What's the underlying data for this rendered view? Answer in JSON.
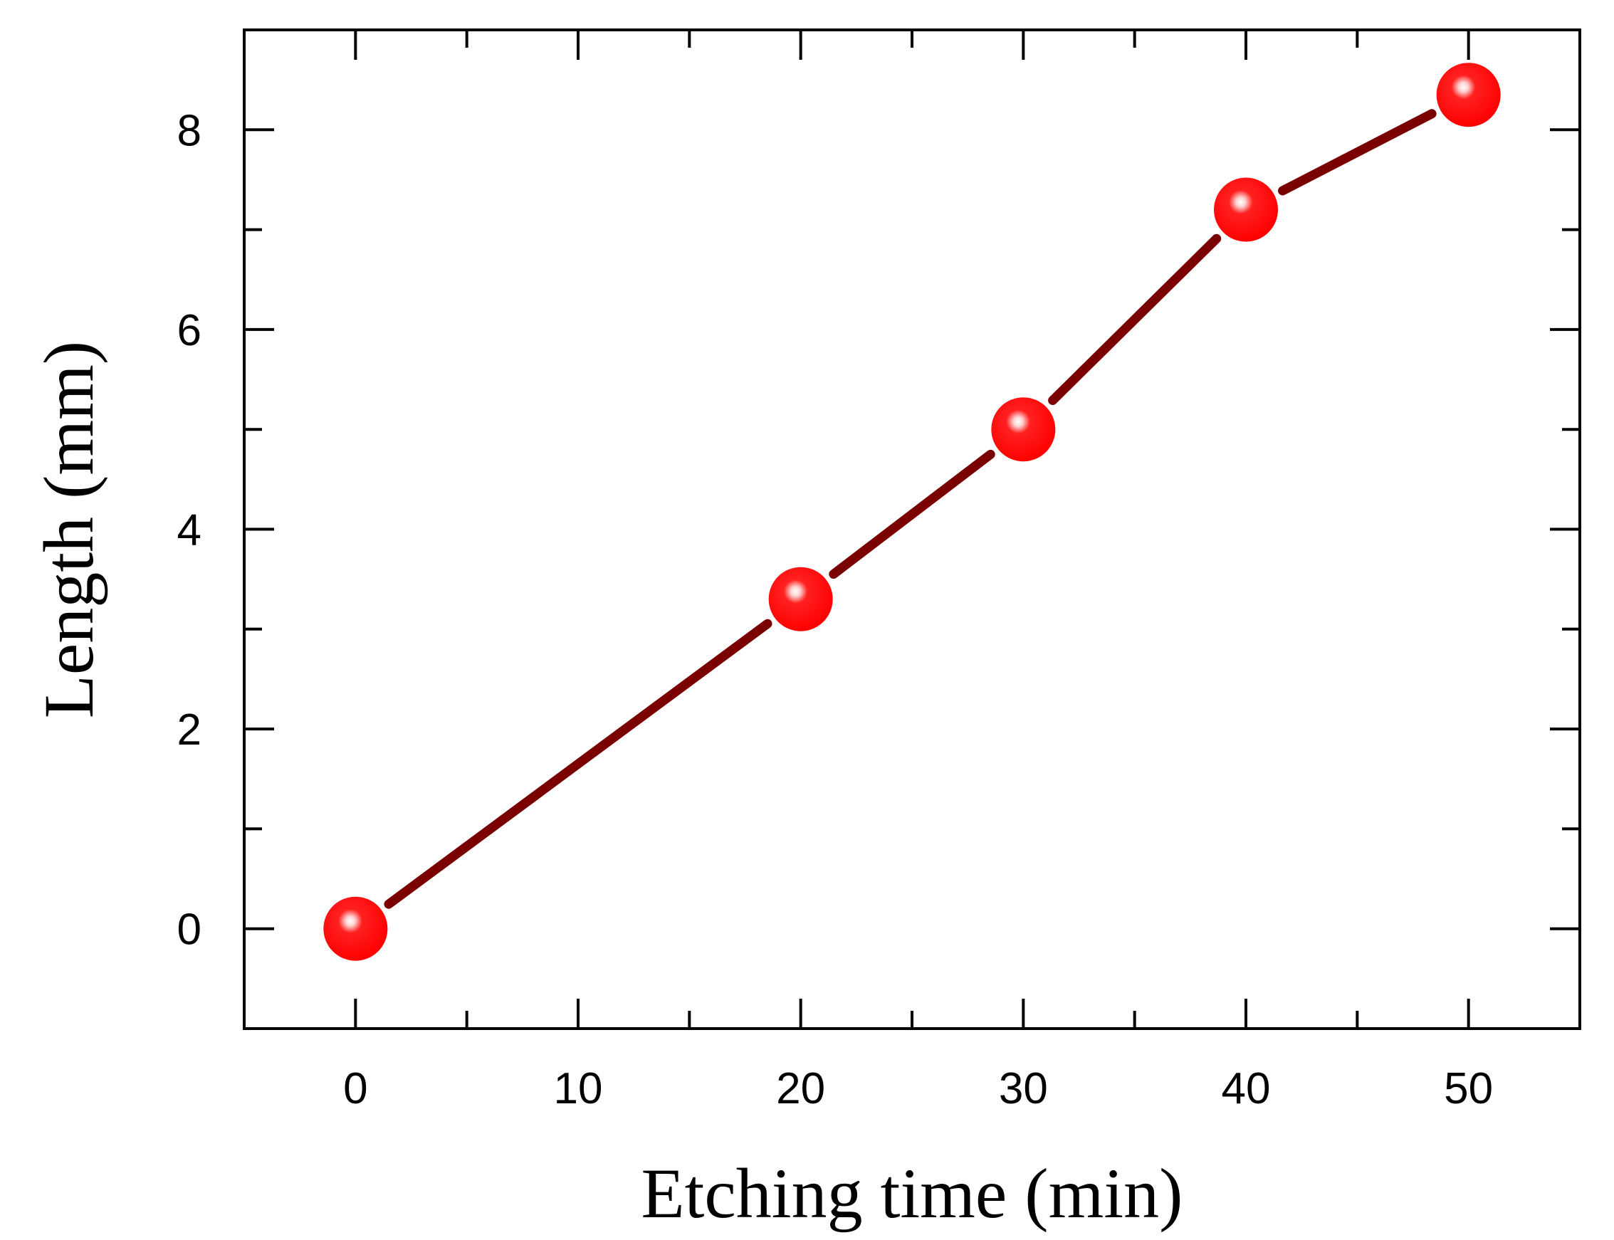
{
  "chart_data": {
    "type": "line",
    "xlabel": "Etching time (min)",
    "ylabel": "Length (mm)",
    "xlim": [
      -5,
      55
    ],
    "ylim": [
      -1,
      9
    ],
    "xticks": [
      0,
      10,
      20,
      30,
      40,
      50
    ],
    "yticks": [
      0,
      2,
      4,
      6,
      8
    ],
    "x_minor_step": 5,
    "y_minor_step": 1,
    "grid": false,
    "series": [
      {
        "x": [
          0,
          20,
          30,
          40,
          50
        ],
        "y": [
          0,
          3.3,
          5.0,
          7.2,
          8.35
        ],
        "line_color": "#7a0000",
        "marker_color": "#ff0000"
      }
    ]
  }
}
